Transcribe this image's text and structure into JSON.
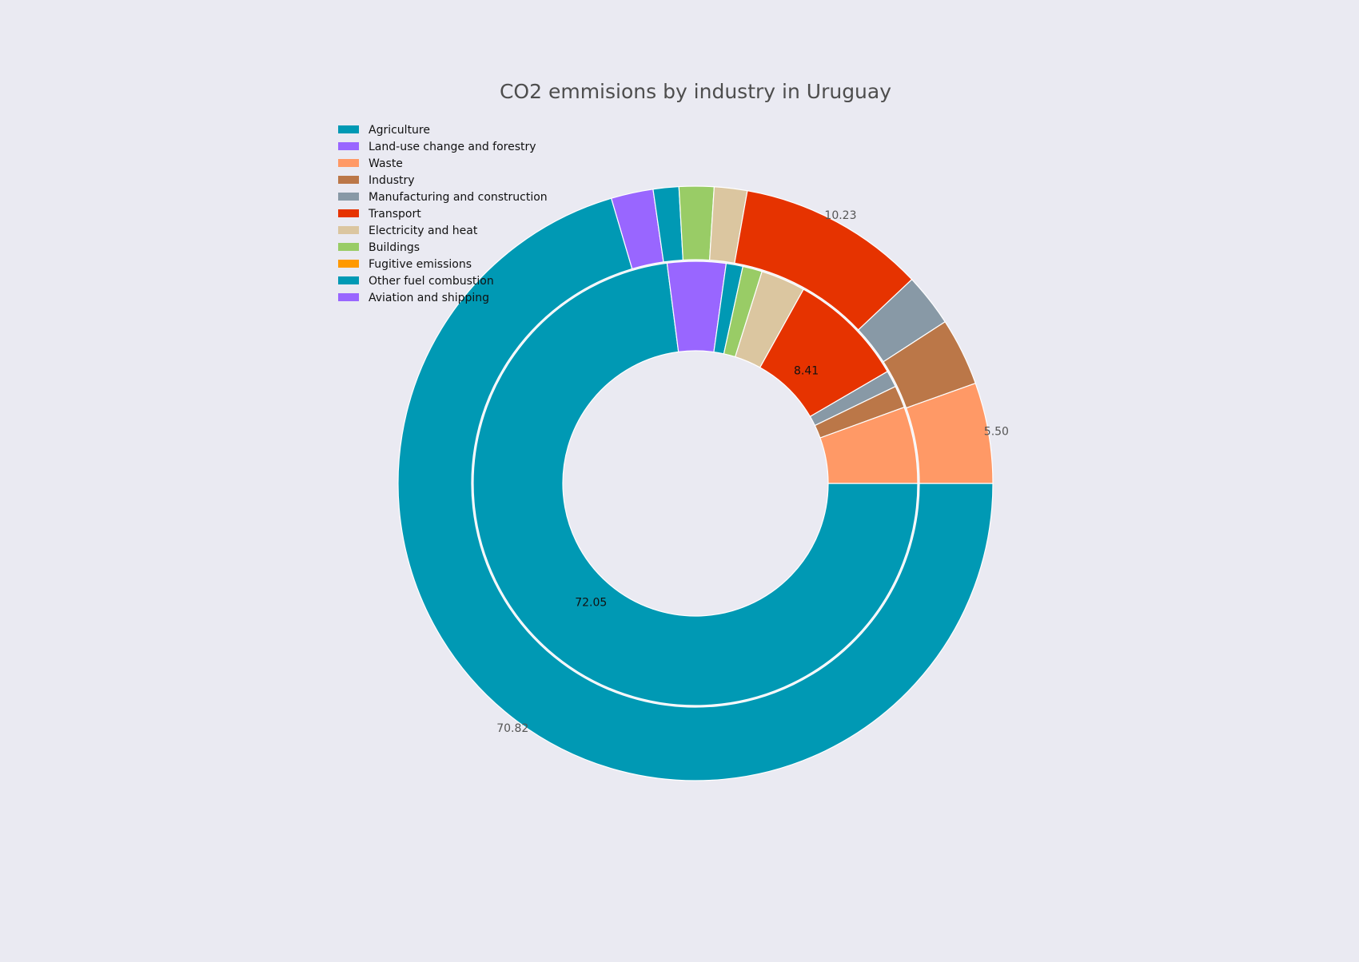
{
  "chart_data": {
    "type": "pie",
    "title": "CO2 emmisions by industry in Uruguay",
    "legend_position": "top-left",
    "outer_ring": {
      "name": "",
      "categories": [
        "Agriculture",
        "Land-use change and forestry",
        "Other fuel combustion",
        "Buildings",
        "Electricity and heat",
        "Transport",
        "Manufacturing and construction",
        "Industry",
        "Waste"
      ],
      "values": [
        70.82,
        2.3,
        1.4,
        1.9,
        1.8,
        10.23,
        2.9,
        3.7,
        5.5
      ],
      "colors": [
        "#0099b4",
        "#9966ff",
        "#0099b4",
        "#99cc66",
        "#dbc6a0",
        "#e63300",
        "#8899a6",
        "#bb7748",
        "#ff9966"
      ]
    },
    "inner_ring": {
      "name": "",
      "categories": [
        "Agriculture",
        "Land-use change and forestry",
        "Other fuel combustion",
        "Buildings",
        "Electricity and heat",
        "Transport",
        "Manufacturing and construction",
        "Industry",
        "Waste"
      ],
      "values": [
        72.05,
        4.2,
        1.2,
        1.4,
        3.2,
        8.41,
        1.2,
        1.6,
        5.5
      ],
      "colors": [
        "#0099b4",
        "#9966ff",
        "#0099b4",
        "#99cc66",
        "#dbc6a0",
        "#e63300",
        "#8899a6",
        "#bb7748",
        "#ff9966"
      ]
    },
    "data_labels": {
      "outer": [
        {
          "category": "Agriculture",
          "text": "70.82"
        },
        {
          "category": "Transport",
          "text": "10.23"
        },
        {
          "category": "Waste",
          "text": "5.50"
        }
      ],
      "inner": [
        {
          "category": "Agriculture",
          "text": "72.05"
        },
        {
          "category": "Transport",
          "text": "8.41"
        }
      ]
    },
    "legend": [
      {
        "label": "Agriculture",
        "color": "#0099b4"
      },
      {
        "label": "Land-use change and forestry",
        "color": "#9966ff"
      },
      {
        "label": "Waste",
        "color": "#ff9966"
      },
      {
        "label": "Industry",
        "color": "#bb7748"
      },
      {
        "label": "Manufacturing and construction",
        "color": "#8899a6"
      },
      {
        "label": "Transport",
        "color": "#e63300"
      },
      {
        "label": "Electricity and heat",
        "color": "#dbc6a0"
      },
      {
        "label": "Buildings",
        "color": "#99cc66"
      },
      {
        "label": "Fugitive emissions",
        "color": "#ff9900"
      },
      {
        "label": "Other fuel combustion",
        "color": "#0099b4"
      },
      {
        "label": "Aviation and shipping",
        "color": "#9966ff"
      }
    ]
  }
}
